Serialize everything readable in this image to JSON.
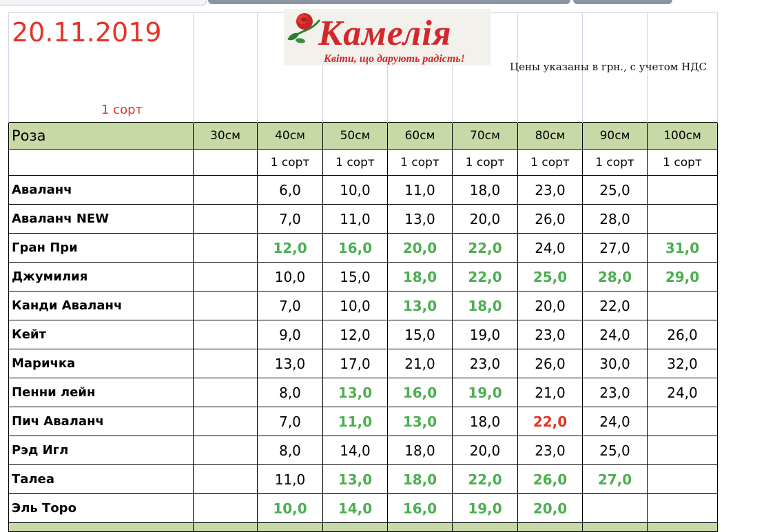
{
  "date": "20.11.2019",
  "grade_note": "1 сорт",
  "price_note": "Цены указаны в грн., с учетом НДС",
  "logo": {
    "name": "Камелія",
    "slogan": "Квіти, що дарують радість!"
  },
  "colors": {
    "accent_red": "#e53327",
    "highlight_green": "#4caf50",
    "header_bg": "#c6d9a6"
  },
  "table": {
    "product": "Роза",
    "columns": [
      "30см",
      "40см",
      "50см",
      "60см",
      "70см",
      "80см",
      "90см",
      "100см"
    ],
    "grades": [
      "",
      "1 сорт",
      "1 сорт",
      "1 сорт",
      "1 сорт",
      "1 сорт",
      "1 сорт",
      "1 сорт"
    ],
    "rows": [
      {
        "name": "Аваланч",
        "prices": [
          "",
          "6,0",
          "10,0",
          "11,0",
          "18,0",
          "23,0",
          "25,0",
          ""
        ],
        "marks": [
          "",
          "",
          "",
          "",
          "",
          "",
          "",
          ""
        ]
      },
      {
        "name": "Аваланч NEW",
        "prices": [
          "",
          "7,0",
          "11,0",
          "13,0",
          "20,0",
          "26,0",
          "28,0",
          ""
        ],
        "marks": [
          "",
          "",
          "",
          "",
          "",
          "",
          "",
          ""
        ]
      },
      {
        "name": "Гран При",
        "prices": [
          "",
          "12,0",
          "16,0",
          "20,0",
          "22,0",
          "24,0",
          "27,0",
          "31,0"
        ],
        "marks": [
          "",
          "g",
          "g",
          "g",
          "g",
          "",
          "",
          "g"
        ]
      },
      {
        "name": "Джумилия",
        "prices": [
          "",
          "10,0",
          "15,0",
          "18,0",
          "22,0",
          "25,0",
          "28,0",
          "29,0"
        ],
        "marks": [
          "",
          "",
          "",
          "g",
          "g",
          "g",
          "g",
          "g"
        ]
      },
      {
        "name": "Канди Аваланч",
        "prices": [
          "",
          "7,0",
          "10,0",
          "13,0",
          "18,0",
          "20,0",
          "22,0",
          ""
        ],
        "marks": [
          "",
          "",
          "",
          "g",
          "g",
          "",
          "",
          ""
        ]
      },
      {
        "name": "Кейт",
        "prices": [
          "",
          "9,0",
          "12,0",
          "15,0",
          "19,0",
          "23,0",
          "24,0",
          "26,0"
        ],
        "marks": [
          "",
          "",
          "",
          "",
          "",
          "",
          "",
          ""
        ]
      },
      {
        "name": "Маричка",
        "prices": [
          "",
          "13,0",
          "17,0",
          "21,0",
          "23,0",
          "26,0",
          "30,0",
          "32,0"
        ],
        "marks": [
          "",
          "",
          "",
          "",
          "",
          "",
          "",
          ""
        ]
      },
      {
        "name": "Пенни лейн",
        "prices": [
          "",
          "8,0",
          "13,0",
          "16,0",
          "19,0",
          "21,0",
          "23,0",
          "24,0"
        ],
        "marks": [
          "",
          "",
          "g",
          "g",
          "g",
          "",
          "",
          ""
        ]
      },
      {
        "name": "Пич Аваланч",
        "prices": [
          "",
          "7,0",
          "11,0",
          "13,0",
          "18,0",
          "22,0",
          "24,0",
          ""
        ],
        "marks": [
          "",
          "",
          "g",
          "g",
          "",
          "r",
          "",
          ""
        ]
      },
      {
        "name": "Рэд Игл",
        "prices": [
          "",
          "8,0",
          "14,0",
          "18,0",
          "20,0",
          "23,0",
          "25,0",
          ""
        ],
        "marks": [
          "",
          "",
          "",
          "",
          "",
          "",
          "",
          ""
        ]
      },
      {
        "name": "Талеа",
        "prices": [
          "",
          "11,0",
          "13,0",
          "18,0",
          "22,0",
          "26,0",
          "27,0",
          ""
        ],
        "marks": [
          "",
          "",
          "g",
          "g",
          "g",
          "g",
          "g",
          ""
        ]
      },
      {
        "name": "Эль Торо",
        "prices": [
          "",
          "10,0",
          "14,0",
          "16,0",
          "19,0",
          "20,0",
          "",
          ""
        ],
        "marks": [
          "",
          "g",
          "g",
          "g",
          "g",
          "g",
          "",
          ""
        ]
      }
    ]
  }
}
